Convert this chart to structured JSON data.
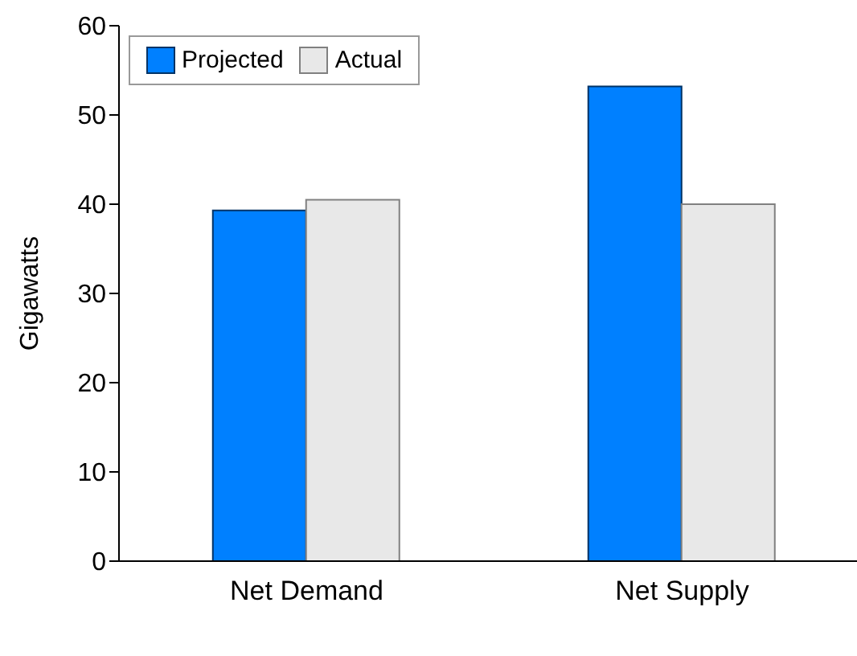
{
  "chart_data": {
    "type": "bar",
    "ylabel": "Gigawatts",
    "categories": [
      "Net Demand",
      "Net Supply"
    ],
    "series": [
      {
        "name": "Projected",
        "color": "#0080ff",
        "values": [
          39.3,
          53.2
        ]
      },
      {
        "name": "Actual",
        "color": "#e8e8e8",
        "values": [
          40.5,
          40.0
        ]
      }
    ],
    "ylim": [
      0,
      60
    ],
    "yticks": [
      0,
      10,
      20,
      30,
      40,
      50,
      60
    ],
    "grid": false,
    "legend": "top left"
  }
}
